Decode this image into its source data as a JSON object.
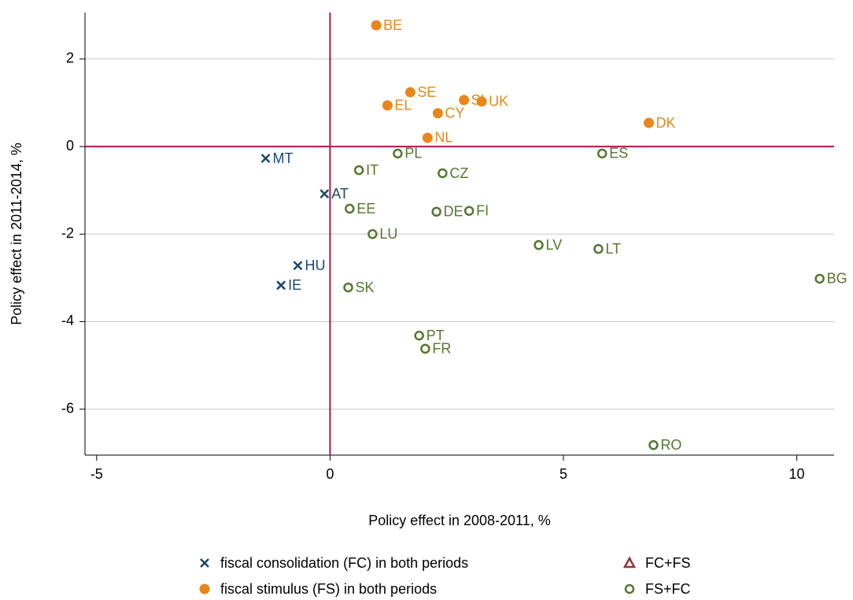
{
  "chart_data": {
    "type": "scatter",
    "xlabel": "Policy effect in 2008-2011, %",
    "ylabel": "Policy effect in 2011-2014, %",
    "xlim": [
      -5.25,
      10.8
    ],
    "ylim": [
      -7.05,
      3.06
    ],
    "xticks": [
      -5,
      0,
      5,
      10
    ],
    "yticks": [
      -6,
      -4,
      -2,
      0,
      2
    ],
    "grid": true,
    "reference_lines": {
      "x": 0,
      "y": 0,
      "color": "#b0154f"
    },
    "legend": "bottom",
    "series": [
      {
        "name": "fiscal consolidation (FC) in both periods",
        "color": "#1a476f",
        "marker": "x",
        "labels": [
          "MT",
          "AT",
          "HU",
          "IE"
        ],
        "x": [
          -1.38,
          -0.12,
          -0.69,
          -1.05
        ],
        "y": [
          -0.27,
          -1.08,
          -2.72,
          -3.17
        ]
      },
      {
        "name": "FC+FS",
        "color": "#90353b",
        "marker": "triangle",
        "labels": [],
        "x": [],
        "y": []
      },
      {
        "name": "fiscal stimulus (FS) in both periods",
        "color": "#e8861a",
        "marker": "filled-circle",
        "labels": [
          "BE",
          "SE",
          "EL",
          "SI",
          "UK",
          "CY",
          "DK",
          "NL"
        ],
        "x": [
          0.99,
          1.72,
          1.23,
          2.87,
          3.25,
          2.31,
          6.83,
          2.09
        ],
        "y": [
          2.77,
          1.24,
          0.94,
          1.06,
          1.03,
          0.76,
          0.54,
          0.2
        ]
      },
      {
        "name": "FS+FC",
        "color": "#55752f",
        "marker": "hollow-circle",
        "labels": [
          "PL",
          "ES",
          "IT",
          "CZ",
          "EE",
          "DE",
          "FI",
          "LU",
          "LV",
          "LT",
          "BG",
          "SK",
          "PT",
          "FR",
          "RO"
        ],
        "x": [
          1.45,
          5.83,
          0.62,
          2.41,
          0.42,
          2.28,
          2.98,
          0.91,
          4.47,
          5.75,
          10.49,
          0.39,
          1.91,
          2.04,
          6.93
        ],
        "y": [
          -0.16,
          -0.16,
          -0.54,
          -0.61,
          -1.42,
          -1.49,
          -1.47,
          -2.0,
          -2.25,
          -2.34,
          -3.02,
          -3.22,
          -4.32,
          -4.62,
          -6.82
        ]
      }
    ]
  }
}
